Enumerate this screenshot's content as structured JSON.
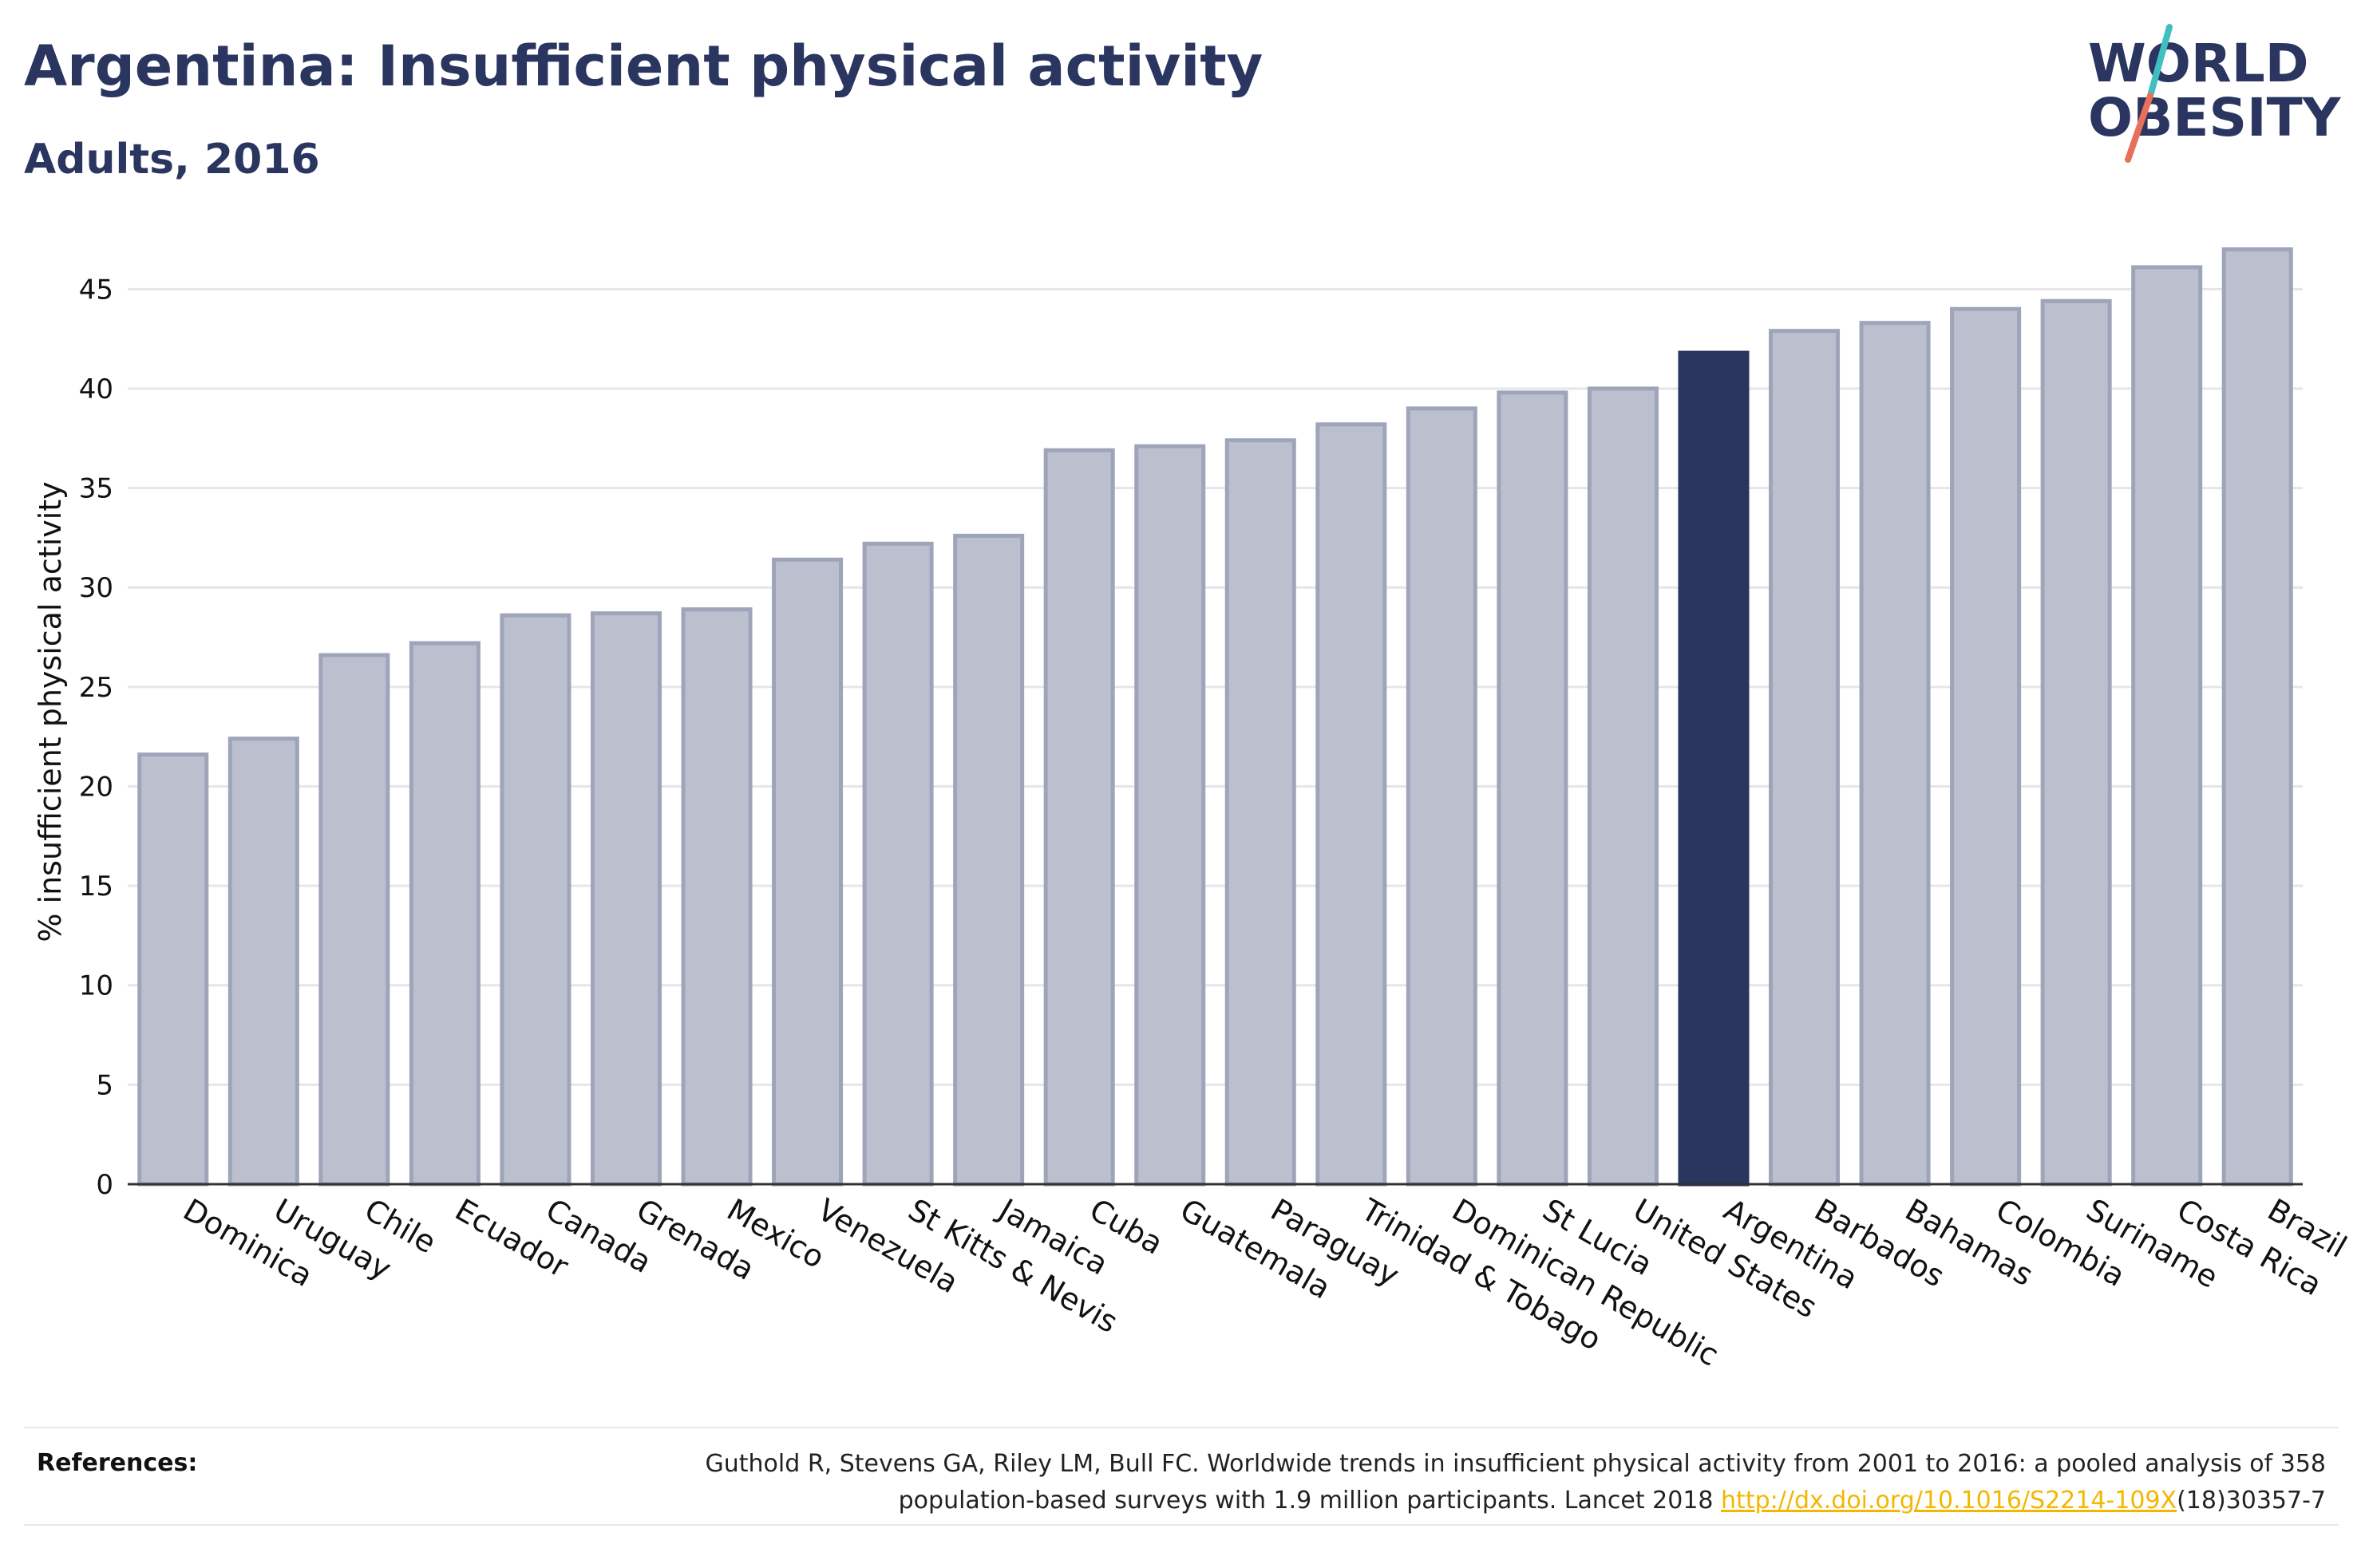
{
  "header": {
    "title": "Argentina: Insufficient physical activity",
    "subtitle": "Adults, 2016"
  },
  "logo": {
    "line1": "WORLD",
    "line2": "OBESITY",
    "accent_teal": "#3fbfbf",
    "accent_coral": "#e8705a"
  },
  "colors": {
    "bar": "#bcc0ce",
    "bar_stroke": "#9ea4ba",
    "highlight": "#2a3560",
    "text": "#2a3560",
    "grid": "#e6e6ea"
  },
  "chart_data": {
    "type": "bar",
    "title": "Argentina: Insufficient physical activity",
    "subtitle": "Adults, 2016",
    "ylabel": "% insufficient physical activity",
    "xlabel": "",
    "ylim": [
      0,
      47.5
    ],
    "yticks": [
      0,
      5,
      10,
      15,
      20,
      25,
      30,
      35,
      40,
      45
    ],
    "grid": true,
    "highlight": "Argentina",
    "categories": [
      "Dominica",
      "Uruguay",
      "Chile",
      "Ecuador",
      "Canada",
      "Grenada",
      "Mexico",
      "Venezuela",
      "St Kitts & Nevis",
      "Jamaica",
      "Cuba",
      "Guatemala",
      "Paraguay",
      "Trinidad & Tobago",
      "Dominican Republic",
      "St Lucia",
      "United States",
      "Argentina",
      "Barbados",
      "Bahamas",
      "Colombia",
      "Suriname",
      "Costa Rica",
      "Brazil"
    ],
    "values": [
      21.6,
      22.4,
      26.6,
      27.2,
      28.6,
      28.7,
      28.9,
      31.4,
      32.2,
      32.6,
      36.9,
      37.1,
      37.4,
      38.2,
      39.0,
      39.8,
      40.0,
      41.8,
      42.9,
      43.3,
      44.0,
      44.4,
      46.1,
      47.0
    ]
  },
  "references": {
    "label": "References:",
    "text_line1": "Guthold R, Stevens GA, Riley LM, Bull FC. Worldwide trends in insufficient physical activity from 2001 to 2016: a pooled analysis of 358",
    "text_line2_pre": "population-based surveys with 1.9 million participants. Lancet 2018 ",
    "link": "http://dx.doi.org/10.1016/S2214-109X",
    "text_line2_post": "(18)30357-7"
  }
}
